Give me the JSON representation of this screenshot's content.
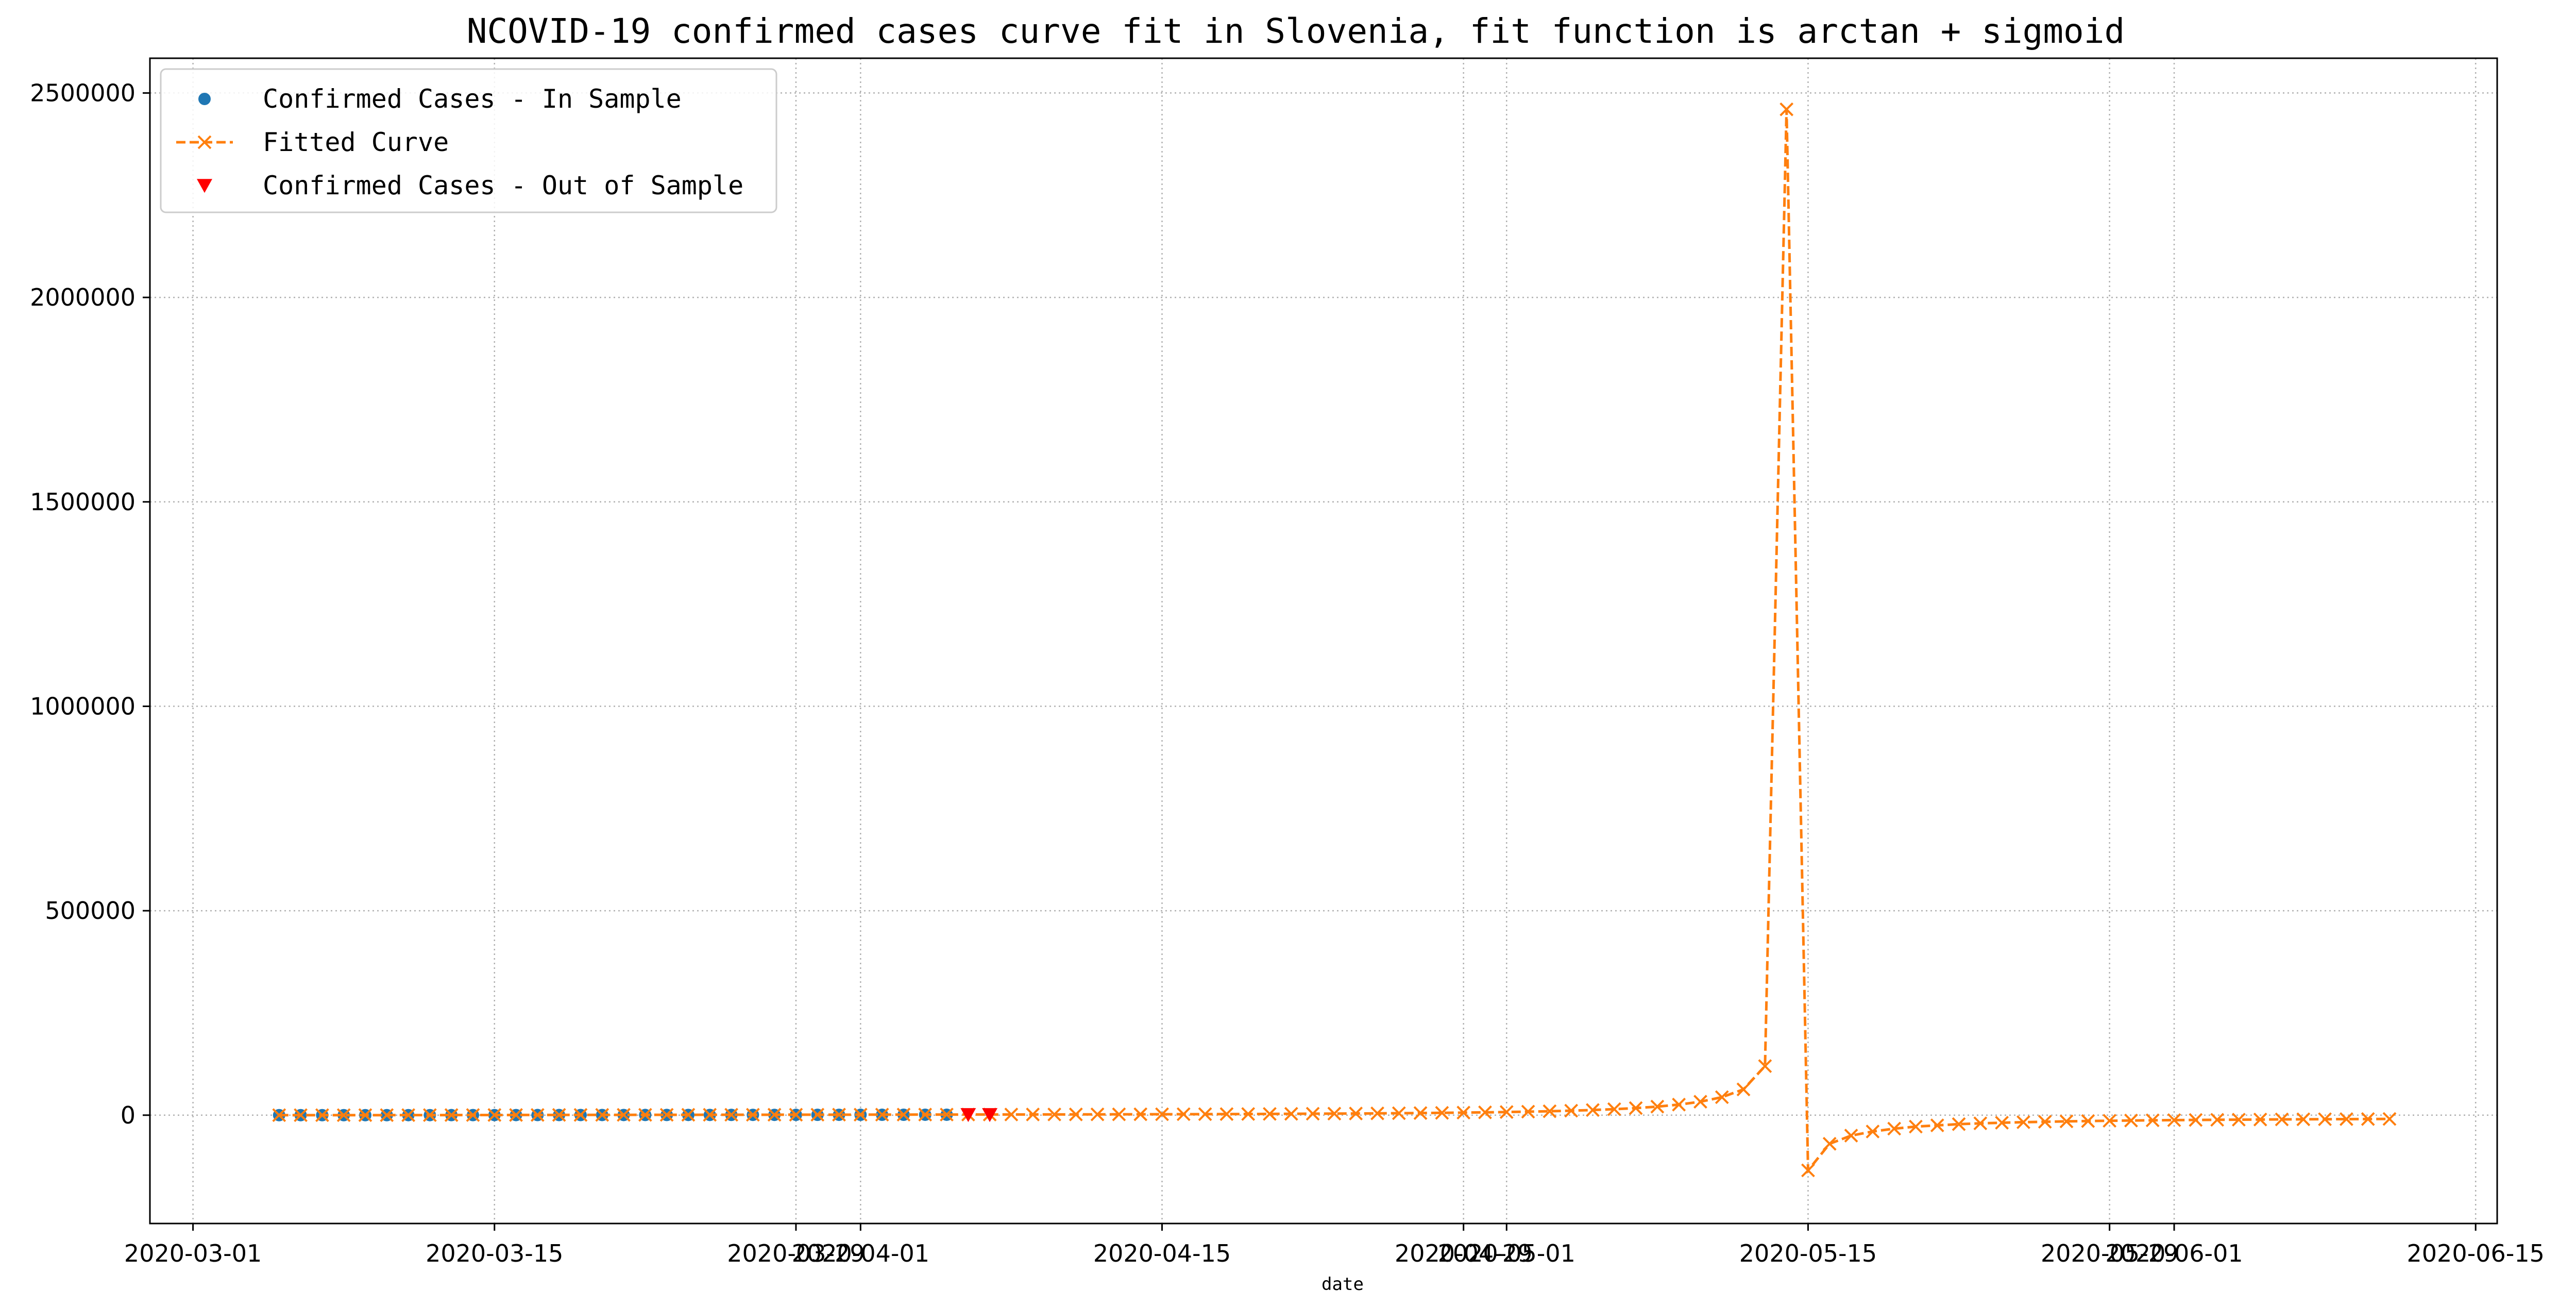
{
  "chart_data": {
    "type": "line",
    "title": "NCOVID-19 confirmed cases curve fit in Slovenia, fit function is arctan + sigmoid",
    "xlabel": "date",
    "ylabel": "",
    "xlim": [
      "2020-02-28",
      "2020-06-16"
    ],
    "ylim": [
      -265000,
      2585000
    ],
    "grid": true,
    "legend_position": "top-left",
    "x_ticks": [
      "2020-03-01",
      "2020-03-15",
      "2020-03-29",
      "2020-04-01",
      "2020-04-15",
      "2020-04-29",
      "2020-05-01",
      "2020-05-15",
      "2020-05-29",
      "2020-06-01",
      "2020-06-15"
    ],
    "x_tick_labels": [
      "2020-03-01",
      "2020-03-15",
      "2020-03-29",
      "2020-04-01",
      "2020-04-15",
      "2020-04-29",
      "2020-05-01",
      "2020-05-15",
      "2020-05-29",
      "2020-06-01",
      "2020-06-15"
    ],
    "y_ticks": [
      0,
      500000,
      1000000,
      1500000,
      2000000,
      2500000
    ],
    "y_tick_labels": [
      "0",
      "500000",
      "1000000",
      "1500000",
      "2000000",
      "2500000"
    ],
    "series": [
      {
        "name": "Confirmed Cases - In Sample",
        "style": "markers",
        "marker": "circle",
        "color": "#1f77b4",
        "x_start": "2020-03-05",
        "values": [
          1,
          6,
          8,
          12,
          16,
          31,
          57,
          89,
          141,
          181,
          219,
          253,
          275,
          286,
          341,
          383,
          414,
          442,
          480,
          528,
          562,
          632,
          684,
          730,
          756,
          802,
          841,
          897,
          934,
          977,
          997,
          1021
        ]
      },
      {
        "name": "Fitted Curve",
        "style": "dashed-line-x-markers",
        "marker": "x",
        "color": "#ff7f0e",
        "x_start": "2020-03-05",
        "values": [
          0,
          10,
          20,
          40,
          70,
          100,
          140,
          190,
          250,
          320,
          380,
          440,
          500,
          560,
          610,
          660,
          710,
          760,
          810,
          860,
          900,
          950,
          990,
          1030,
          1080,
          1120,
          1170,
          1220,
          1270,
          1330,
          1390,
          1450,
          1500,
          1560,
          1620,
          1690,
          1760,
          1840,
          1930,
          2020,
          2120,
          2240,
          2360,
          2500,
          2660,
          2840,
          3040,
          3260,
          3500,
          3770,
          4060,
          4390,
          4760,
          5180,
          5660,
          6220,
          6860,
          7620,
          8520,
          9600,
          10920,
          12550,
          14620,
          17300,
          20860,
          25800,
          32900,
          44000,
          63000,
          120000,
          2460000,
          -135000,
          -70000,
          -50000,
          -40000,
          -33000,
          -28000,
          -25000,
          -22000,
          -20000,
          -18500,
          -17200,
          -16100,
          -15200,
          -14400,
          -13700,
          -13100,
          -12600,
          -12100,
          -11700,
          -11300,
          -11000,
          -10700,
          -10400,
          -10100,
          -9900,
          -9700,
          -9500,
          -9300
        ]
      },
      {
        "name": "Confirmed Cases - Out of Sample",
        "style": "markers",
        "marker": "triangle-down",
        "color": "#ff0000",
        "x_start": "2020-04-06",
        "values": [
          1059,
          1091
        ]
      }
    ]
  }
}
